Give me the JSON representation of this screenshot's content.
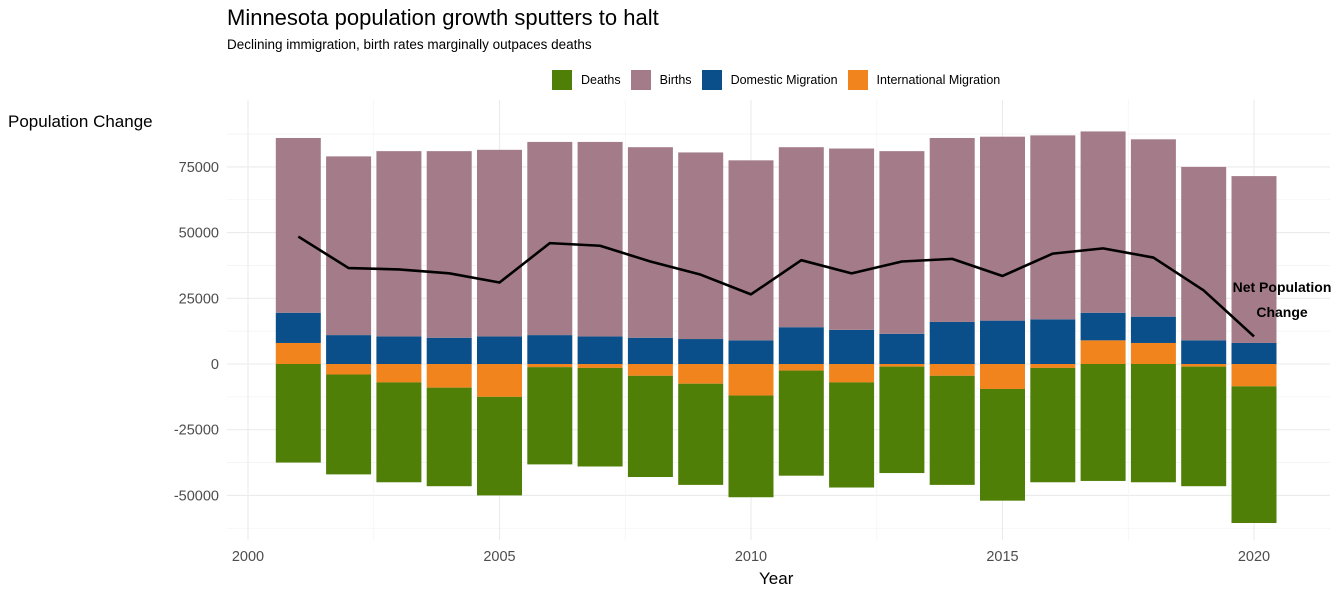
{
  "chart_data": {
    "type": "bar",
    "stacked": true,
    "title": "Minnesota population growth sputters to halt",
    "subtitle": "Declining immigration, birth rates marginally outpaces deaths",
    "xlabel": "Year",
    "ylabel": "Population Change",
    "x": [
      2001,
      2002,
      2003,
      2004,
      2005,
      2006,
      2007,
      2008,
      2009,
      2010,
      2011,
      2012,
      2013,
      2014,
      2015,
      2016,
      2017,
      2018,
      2019,
      2020
    ],
    "x_ticks": [
      "2000",
      "2005",
      "2010",
      "2015",
      "2020"
    ],
    "y_ticks": [
      "-50000",
      "-25000",
      "0",
      "25000",
      "50000",
      "75000"
    ],
    "xlim": [
      1999.5,
      2021.3
    ],
    "ylim": [
      -67000,
      91000
    ],
    "grid": true,
    "legend_position": "top",
    "legend": [
      "Deaths",
      "Births",
      "Domestic Migration",
      "International Migration"
    ],
    "series": [
      {
        "name": "Deaths",
        "color": "#4f7f06",
        "stack_base": "bottom_of_negatives",
        "values": [
          -37500,
          -38000,
          -38000,
          -37500,
          -37500,
          -37000,
          -37500,
          -38500,
          -38500,
          -38700,
          -40000,
          -40000,
          -40500,
          -41500,
          -42500,
          -43500,
          -44500,
          -45000,
          -45500,
          -52000
        ]
      },
      {
        "name": "International Migration",
        "color": "#f2841e",
        "note": "positive stacks at base, negative sits above deaths",
        "values": [
          8000,
          -4000,
          -7000,
          -9000,
          -12500,
          -1200,
          -1500,
          -4500,
          -7500,
          -12000,
          -2500,
          -7000,
          -1000,
          -4500,
          -9500,
          -1500,
          9000,
          8000,
          -1000,
          -8500
        ]
      },
      {
        "name": "Domestic Migration",
        "color": "#0b4f8a",
        "values": [
          11500,
          11000,
          10500,
          10000,
          10500,
          11000,
          10500,
          10000,
          9500,
          9000,
          14000,
          13000,
          11500,
          16000,
          16500,
          17000,
          10500,
          10000,
          9000,
          8000
        ]
      },
      {
        "name": "Births",
        "color": "#a47c89",
        "values": [
          66500,
          68000,
          70500,
          71000,
          71000,
          73500,
          74000,
          72500,
          71000,
          68500,
          68500,
          69000,
          69500,
          70000,
          70000,
          70000,
          69000,
          67500,
          66000,
          63500
        ]
      },
      {
        "name": "Net Population Change",
        "type": "line",
        "color": "#000000",
        "values": [
          48500,
          36500,
          36000,
          34500,
          31000,
          46000,
          45000,
          39000,
          34000,
          26500,
          39500,
          34500,
          39000,
          40000,
          33500,
          42000,
          44000,
          40500,
          28000,
          10500
        ]
      }
    ],
    "annotation": [
      "Net Population",
      "Change"
    ]
  }
}
